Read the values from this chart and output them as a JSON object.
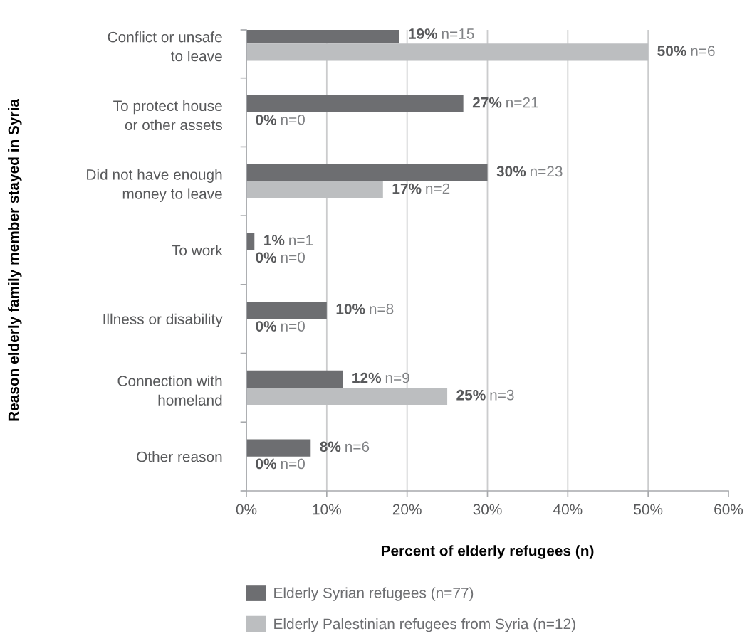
{
  "chart_data": {
    "type": "bar",
    "orientation": "horizontal",
    "xlabel": "Percent of elderly refugees (n)",
    "ylabel": "Reason elderly family member stayed in Syria",
    "categories": [
      "Conflict or unsafe\nto leave",
      "To protect house\nor other assets",
      "Did not have enough\nmoney to leave",
      "To work",
      "Illness or disability",
      "Connection with\nhomeland",
      "Other reason"
    ],
    "series": [
      {
        "name": "Elderly Syrian refugees (n=77)",
        "color": "#6d6e71",
        "values": [
          19,
          27,
          30,
          1,
          10,
          12,
          8
        ],
        "value_labels": [
          "19% n=15",
          "27% n=21",
          "30% n=23",
          "1% n=1",
          "10% n=8",
          "12% n=9",
          "8% n=6"
        ]
      },
      {
        "name": "Elderly Palestinian refugees from Syria (n=12)",
        "color": "#bcbec0",
        "values": [
          50,
          0,
          17,
          0,
          0,
          25,
          0
        ],
        "value_labels": [
          "50% n=6",
          "0% n=0",
          "17% n=2",
          "0% n=0",
          "0% n=0",
          "25% n=3",
          "0% n=0"
        ]
      }
    ],
    "xlim": [
      0,
      60
    ],
    "xticks": [
      {
        "value": 0,
        "label": "0%"
      },
      {
        "value": 10,
        "label": "10%"
      },
      {
        "value": 20,
        "label": "20%"
      },
      {
        "value": 30,
        "label": "30%"
      },
      {
        "value": 40,
        "label": "40%"
      },
      {
        "value": 50,
        "label": "50%"
      },
      {
        "value": 60,
        "label": "60%"
      }
    ],
    "grid": "x",
    "legend": "bottom left"
  }
}
